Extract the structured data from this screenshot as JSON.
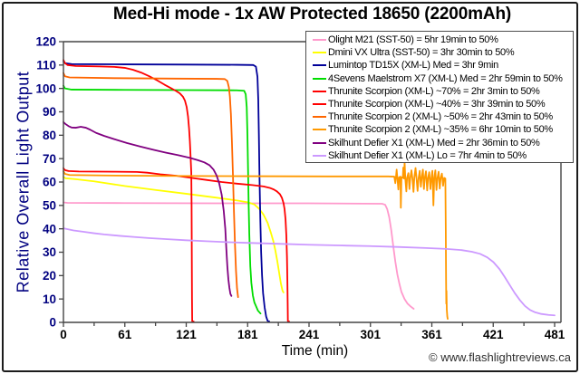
{
  "frame": {
    "watermark": "© www.flashlightreviews.ca"
  },
  "chart_data": {
    "type": "line",
    "title": "Med-Hi mode - 1x AW Protected 18650 (2200mAh)",
    "xlabel": "Time (min)",
    "ylabel": "Relative Overall Light Output",
    "xlim": [
      0,
      481
    ],
    "ylim": [
      0,
      120
    ],
    "x_ticks": [
      0,
      61,
      121,
      181,
      241,
      301,
      361,
      421,
      481
    ],
    "y_ticks": [
      0,
      10,
      20,
      30,
      40,
      50,
      60,
      70,
      80,
      90,
      100,
      110,
      120
    ],
    "grid": false,
    "legend_position": "top-right",
    "axis_text_colors": {
      "x": "#000000",
      "y": "#000080"
    },
    "series": [
      {
        "name": "Olight M21 (SST-50) = 5hr 19min to 50%",
        "color": "#FF99CC",
        "points": [
          [
            0,
            51.3
          ],
          [
            4,
            51.1
          ],
          [
            60,
            51
          ],
          [
            150,
            50.9
          ],
          [
            240,
            50.9
          ],
          [
            312,
            50.7
          ],
          [
            315,
            50.3
          ],
          [
            317,
            48.5
          ],
          [
            319,
            45
          ],
          [
            321,
            39.5
          ],
          [
            323,
            32.5
          ],
          [
            325,
            26
          ],
          [
            327,
            20.5
          ],
          [
            329,
            16.5
          ],
          [
            331,
            13
          ],
          [
            334,
            10
          ],
          [
            337,
            8
          ],
          [
            340,
            6.8
          ],
          [
            343,
            5.8
          ]
        ]
      },
      {
        "name": "Dmini VX Ultra (SST-50) = 3hr 30min to 50%",
        "color": "#FFFF00",
        "points": [
          [
            0,
            62.2
          ],
          [
            2,
            61.6
          ],
          [
            12,
            61.2
          ],
          [
            30,
            60.3
          ],
          [
            60,
            58.3
          ],
          [
            90,
            56.6
          ],
          [
            120,
            55
          ],
          [
            150,
            53.3
          ],
          [
            170,
            52.1
          ],
          [
            181,
            51.3
          ],
          [
            187,
            50.4
          ],
          [
            192,
            48.4
          ],
          [
            196,
            46
          ],
          [
            200,
            42.5
          ],
          [
            203,
            38.5
          ],
          [
            205.5,
            34.8
          ],
          [
            207.5,
            30.8
          ],
          [
            209.5,
            26
          ],
          [
            211.5,
            20.5
          ],
          [
            213,
            16.5
          ],
          [
            214.5,
            13.6
          ],
          [
            215.5,
            12.8
          ]
        ]
      },
      {
        "name": "Lumintop TD15X (XM-L) Med = 3hr 9min",
        "color": "#000099",
        "points": [
          [
            0,
            111.6
          ],
          [
            1.5,
            110.8
          ],
          [
            8,
            110.4
          ],
          [
            60,
            110.3
          ],
          [
            120,
            110.2
          ],
          [
            170,
            110.1
          ],
          [
            186,
            110
          ],
          [
            188.5,
            109.3
          ],
          [
            190,
            105
          ],
          [
            190.8,
            95
          ],
          [
            191.4,
            80
          ],
          [
            192,
            62
          ],
          [
            192.8,
            44
          ],
          [
            193.6,
            30
          ],
          [
            194.5,
            20
          ],
          [
            195.5,
            12.5
          ],
          [
            197,
            6.5
          ],
          [
            198.5,
            2.5
          ],
          [
            200,
            0.6
          ],
          [
            201.5,
            0.4
          ]
        ]
      },
      {
        "name": "4Sevens Maelstrom X7 (XM-L) Med = 2hr 59min to 50%",
        "color": "#00DD00",
        "points": [
          [
            0,
            101.2
          ],
          [
            1.5,
            100
          ],
          [
            8,
            99.5
          ],
          [
            60,
            99.4
          ],
          [
            120,
            99.3
          ],
          [
            170,
            99.2
          ],
          [
            177,
            99
          ],
          [
            178.5,
            97.5
          ],
          [
            179.5,
            92
          ],
          [
            180.2,
            80
          ],
          [
            180.8,
            65
          ],
          [
            181.4,
            50
          ],
          [
            182,
            38
          ],
          [
            183,
            24
          ],
          [
            184,
            17
          ],
          [
            185.5,
            11.5
          ],
          [
            187,
            8.5
          ],
          [
            188.5,
            7
          ],
          [
            190.5,
            5
          ],
          [
            193,
            3.8
          ]
        ]
      },
      {
        "name": "Thrunite Scorpion (XM-L) ~70% = 2hr 3min to 50%",
        "color": "#FF0000",
        "points": [
          [
            0,
            112.2
          ],
          [
            1.5,
            110.8
          ],
          [
            4,
            110
          ],
          [
            12,
            109.6
          ],
          [
            35,
            109.4
          ],
          [
            50,
            109.2
          ],
          [
            60,
            108.8
          ],
          [
            68,
            108
          ],
          [
            76,
            106.8
          ],
          [
            84,
            105.2
          ],
          [
            92,
            103.4
          ],
          [
            99,
            101.6
          ],
          [
            105,
            100.2
          ],
          [
            110,
            99
          ],
          [
            114,
            97.9
          ],
          [
            117,
            96.5
          ],
          [
            119,
            94.8
          ],
          [
            120.7,
            92
          ],
          [
            122,
            88
          ],
          [
            123,
            83
          ],
          [
            123.8,
            77.5
          ],
          [
            124.5,
            71
          ],
          [
            125.2,
            64
          ],
          [
            125.5,
            50
          ],
          [
            125.7,
            30
          ],
          [
            125.9,
            10
          ],
          [
            126.1,
            0.5
          ],
          [
            127.5,
            0.4
          ]
        ]
      },
      {
        "name": "Thrunite Scorpion (XM-L) ~40% = 3hr 39min to 50%",
        "color": "#FF0000",
        "points": [
          [
            0,
            65.9
          ],
          [
            1.5,
            65.1
          ],
          [
            5,
            64.7
          ],
          [
            15,
            64.5
          ],
          [
            50,
            64.4
          ],
          [
            72,
            64.3
          ],
          [
            82,
            64
          ],
          [
            95,
            63.3
          ],
          [
            110,
            62.7
          ],
          [
            125,
            61.8
          ],
          [
            140,
            60.9
          ],
          [
            155,
            60
          ],
          [
            170,
            59.3
          ],
          [
            185,
            58.7
          ],
          [
            196,
            58.1
          ],
          [
            202,
            57.5
          ],
          [
            206,
            56.8
          ],
          [
            209,
            56
          ],
          [
            212,
            54.8
          ],
          [
            214,
            53.2
          ],
          [
            215.5,
            51
          ],
          [
            216.5,
            48.5
          ],
          [
            217.5,
            44
          ],
          [
            218.3,
            37
          ],
          [
            218.9,
            28
          ],
          [
            219.3,
            18
          ],
          [
            219.6,
            8
          ],
          [
            219.8,
            0.5
          ],
          [
            221,
            0.4
          ]
        ]
      },
      {
        "name": "Thrunite Scorpion 2 (XM-L) ~50% = 2hr 43min to 50%",
        "color": "#FF6600",
        "points": [
          [
            0,
            106.6
          ],
          [
            1.5,
            105.2
          ],
          [
            6,
            104.7
          ],
          [
            50,
            104.4
          ],
          [
            110,
            104.2
          ],
          [
            150,
            104.1
          ],
          [
            158,
            104
          ],
          [
            160.5,
            103.2
          ],
          [
            162,
            100.5
          ],
          [
            163,
            96.5
          ],
          [
            164,
            89
          ],
          [
            165,
            77
          ],
          [
            166,
            63
          ],
          [
            167,
            47
          ],
          [
            168,
            33
          ],
          [
            169,
            22
          ],
          [
            170,
            14.5
          ],
          [
            171,
            10.8
          ]
        ]
      },
      {
        "name": "Thrunite Scorpion 2 (XM-L) ~35% = 6hr 10min to 50%",
        "color": "#FF9900",
        "points": [
          [
            0,
            64.6
          ],
          [
            1.5,
            63.5
          ],
          [
            6,
            63
          ],
          [
            40,
            62.8
          ],
          [
            100,
            62.6
          ],
          [
            180,
            62.5
          ],
          [
            260,
            62.4
          ],
          [
            318,
            62.4
          ],
          [
            324,
            62.3
          ],
          [
            325,
            59.5
          ],
          [
            325.6,
            62
          ],
          [
            326.3,
            65.3
          ],
          [
            327,
            61.8
          ],
          [
            328,
            56.8
          ],
          [
            328.7,
            62
          ],
          [
            330,
            62.3
          ],
          [
            330.4,
            49
          ],
          [
            331,
            62
          ],
          [
            332.3,
            61.8
          ],
          [
            332.8,
            66.2
          ],
          [
            333.5,
            61.5
          ],
          [
            334.1,
            68.5
          ],
          [
            334.8,
            61.3
          ],
          [
            335.8,
            56
          ],
          [
            336.5,
            61.8
          ],
          [
            337.8,
            63.8
          ],
          [
            338.8,
            57
          ],
          [
            339.6,
            61.5
          ],
          [
            340.8,
            65
          ],
          [
            341.8,
            61.3
          ],
          [
            342.8,
            55.8
          ],
          [
            343.6,
            61.8
          ],
          [
            344.8,
            66
          ],
          [
            345.8,
            61.4
          ],
          [
            346.8,
            56.2
          ],
          [
            347.8,
            61.7
          ],
          [
            348.9,
            64.8
          ],
          [
            350,
            58
          ],
          [
            350.8,
            61.5
          ],
          [
            352,
            65.3
          ],
          [
            353,
            57
          ],
          [
            353.8,
            61.6
          ],
          [
            355,
            64.6
          ],
          [
            356.2,
            56.4
          ],
          [
            357,
            61.5
          ],
          [
            358.2,
            64.2
          ],
          [
            359.4,
            57
          ],
          [
            360.3,
            61.6
          ],
          [
            361.3,
            64.8
          ],
          [
            362.3,
            50
          ],
          [
            363.1,
            61.7
          ],
          [
            364.2,
            65
          ],
          [
            365.3,
            56.6
          ],
          [
            366.2,
            61.5
          ],
          [
            367.4,
            64.4
          ],
          [
            368.5,
            57.2
          ],
          [
            369.4,
            61.6
          ],
          [
            370.6,
            63.6
          ],
          [
            371.8,
            58.4
          ],
          [
            372.8,
            61.8
          ],
          [
            374,
            61.5
          ],
          [
            374.4,
            40
          ],
          [
            374.7,
            18
          ],
          [
            374.9,
            8
          ],
          [
            375.1,
            13.5
          ],
          [
            375.4,
            5.5
          ],
          [
            375.9,
            2.5
          ],
          [
            376.3,
            1.5
          ]
        ]
      },
      {
        "name": "Skilhunt Defier X1 (XM-L) Med = 2hr 36min to 50%",
        "color": "#800080",
        "points": [
          [
            0,
            85.6
          ],
          [
            2,
            84.8
          ],
          [
            5,
            83.9
          ],
          [
            8,
            83.3
          ],
          [
            12,
            83.2
          ],
          [
            17,
            83.6
          ],
          [
            22,
            83.2
          ],
          [
            26,
            82.4
          ],
          [
            32,
            81
          ],
          [
            40,
            79.7
          ],
          [
            50,
            78.3
          ],
          [
            62,
            76.7
          ],
          [
            75,
            75.2
          ],
          [
            88,
            73.8
          ],
          [
            100,
            72.6
          ],
          [
            112,
            71.5
          ],
          [
            124,
            70.3
          ],
          [
            132,
            69.3
          ],
          [
            138,
            68.4
          ],
          [
            143,
            67.2
          ],
          [
            147,
            65.3
          ],
          [
            150,
            62.8
          ],
          [
            152.5,
            59.5
          ],
          [
            155,
            54.5
          ],
          [
            157,
            47.5
          ],
          [
            158.5,
            40
          ],
          [
            159.5,
            31.5
          ],
          [
            160.5,
            24
          ],
          [
            161.5,
            18.5
          ],
          [
            162.5,
            14.8
          ],
          [
            163.5,
            12.2
          ],
          [
            164.5,
            11.3
          ]
        ]
      },
      {
        "name": "Skilhunt Defier X1 (XM-L) Lo = 7hr 4min to 50%",
        "color": "#CC99FF",
        "points": [
          [
            0,
            40.2
          ],
          [
            10,
            39.3
          ],
          [
            20,
            38.7
          ],
          [
            30,
            38.1
          ],
          [
            40,
            37.6
          ],
          [
            55,
            37
          ],
          [
            70,
            36.5
          ],
          [
            85,
            36
          ],
          [
            100,
            35.6
          ],
          [
            120,
            35.1
          ],
          [
            140,
            34.7
          ],
          [
            160,
            34.3
          ],
          [
            180,
            34
          ],
          [
            210,
            33.6
          ],
          [
            240,
            33.2
          ],
          [
            270,
            32.9
          ],
          [
            300,
            32.6
          ],
          [
            330,
            32.2
          ],
          [
            355,
            31.8
          ],
          [
            375,
            31.4
          ],
          [
            390,
            30.9
          ],
          [
            400,
            30.2
          ],
          [
            408,
            29.3
          ],
          [
            415,
            27.8
          ],
          [
            421,
            25.8
          ],
          [
            427,
            22.8
          ],
          [
            432,
            19.5
          ],
          [
            437,
            16
          ],
          [
            442,
            12.5
          ],
          [
            447,
            9.5
          ],
          [
            452,
            7
          ],
          [
            457,
            5.3
          ],
          [
            462,
            4.3
          ],
          [
            468,
            3.6
          ],
          [
            475,
            3.2
          ],
          [
            481,
            3
          ]
        ]
      }
    ]
  }
}
